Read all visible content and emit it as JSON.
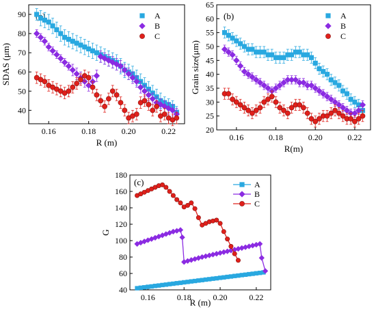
{
  "chart_data": [
    {
      "type": "scatter",
      "panel_label": "(a)",
      "xlabel": "R (m)",
      "ylabel": "SDAS (μm)",
      "xlim": [
        0.15,
        0.228
      ],
      "ylim": [
        33,
        95
      ],
      "xticks": [
        0.16,
        0.18,
        0.2,
        0.22
      ],
      "xtick_labels": [
        "0.16",
        "0.18",
        "0.20",
        "0.22"
      ],
      "yticks": [
        40,
        50,
        60,
        70,
        80,
        90
      ],
      "ytick_labels": [
        "40",
        "50",
        "60",
        "70",
        "80",
        "90"
      ],
      "legend_position": "top-right",
      "grid": false,
      "series": [
        {
          "name": "A",
          "marker": "square",
          "color": "#29a8e0",
          "x": [
            0.154,
            0.156,
            0.158,
            0.16,
            0.162,
            0.164,
            0.166,
            0.168,
            0.17,
            0.172,
            0.174,
            0.176,
            0.178,
            0.18,
            0.182,
            0.184,
            0.186,
            0.188,
            0.19,
            0.192,
            0.194,
            0.196,
            0.198,
            0.2,
            0.202,
            0.204,
            0.206,
            0.208,
            0.21,
            0.212,
            0.214,
            0.216,
            0.218,
            0.22,
            0.222,
            0.224
          ],
          "y": [
            90,
            88,
            87,
            86,
            84,
            82,
            80,
            78,
            77,
            76,
            75,
            74,
            73,
            72,
            71,
            70,
            69,
            68,
            67,
            66,
            65,
            63,
            61,
            60,
            59,
            57,
            55,
            53,
            51,
            49,
            47,
            45,
            44,
            43,
            42,
            39
          ],
          "err": [
            3,
            4,
            4,
            4,
            4,
            4,
            4,
            4,
            4,
            4,
            4,
            4,
            4,
            4,
            4,
            4,
            4,
            4,
            4,
            4,
            4,
            4,
            4,
            4,
            4,
            4,
            4,
            4,
            4,
            4,
            4,
            4,
            3,
            3,
            3,
            3
          ]
        },
        {
          "name": "B",
          "marker": "diamond",
          "color": "#8b2be2",
          "x": [
            0.154,
            0.156,
            0.158,
            0.16,
            0.162,
            0.164,
            0.166,
            0.168,
            0.17,
            0.172,
            0.174,
            0.176,
            0.178,
            0.18,
            0.182,
            0.184,
            0.186,
            0.188,
            0.19,
            0.192,
            0.194,
            0.196,
            0.198,
            0.2,
            0.202,
            0.204,
            0.206,
            0.208,
            0.21,
            0.212,
            0.214,
            0.216,
            0.218,
            0.22,
            0.222,
            0.224
          ],
          "y": [
            80,
            78,
            76,
            73,
            71,
            69,
            67,
            65,
            63,
            61,
            59,
            57,
            55,
            53,
            55,
            58,
            68,
            67,
            66,
            65,
            64,
            63,
            61,
            59,
            57,
            55,
            52,
            50,
            48,
            46,
            44,
            43,
            42,
            41,
            40,
            38
          ],
          "err": [
            2,
            2,
            2,
            2,
            2,
            2,
            2,
            2,
            2,
            3,
            3,
            3,
            3,
            3,
            3,
            3,
            3,
            3,
            3,
            3,
            3,
            3,
            3,
            3,
            3,
            3,
            3,
            3,
            3,
            3,
            3,
            3,
            3,
            3,
            3,
            3
          ]
        },
        {
          "name": "C",
          "marker": "circle",
          "color": "#e0201b",
          "x": [
            0.154,
            0.156,
            0.158,
            0.16,
            0.162,
            0.164,
            0.166,
            0.168,
            0.17,
            0.172,
            0.174,
            0.176,
            0.178,
            0.18,
            0.182,
            0.184,
            0.186,
            0.188,
            0.19,
            0.192,
            0.194,
            0.196,
            0.198,
            0.2,
            0.202,
            0.204,
            0.206,
            0.208,
            0.21,
            0.212,
            0.214,
            0.216,
            0.218,
            0.22,
            0.222,
            0.224
          ],
          "y": [
            57,
            56,
            55,
            53,
            52,
            51,
            50,
            49,
            50,
            52,
            54,
            56,
            58,
            57,
            52,
            48,
            45,
            42,
            46,
            50,
            48,
            44,
            40,
            36,
            37,
            38,
            44,
            45,
            43,
            40,
            42,
            37,
            38,
            36,
            35,
            36
          ],
          "err": [
            3,
            3,
            3,
            3,
            3,
            3,
            3,
            3,
            3,
            3,
            3,
            3,
            3,
            3,
            3,
            3,
            3,
            3,
            3,
            3,
            3,
            3,
            3,
            3,
            3,
            3,
            3,
            3,
            3,
            3,
            3,
            3,
            3,
            3,
            3,
            3
          ]
        }
      ]
    },
    {
      "type": "scatter",
      "panel_label": "(b)",
      "xlabel": "R(m)",
      "ylabel": "Grain size(μm)",
      "xlim": [
        0.15,
        0.228
      ],
      "ylim": [
        20,
        65
      ],
      "xticks": [
        0.16,
        0.18,
        0.2,
        0.22
      ],
      "xtick_labels": [
        "0.16",
        "0.18",
        "0.20",
        "0.22"
      ],
      "yticks": [
        20,
        25,
        30,
        35,
        40,
        45,
        50,
        55,
        60,
        65
      ],
      "ytick_labels": [
        "20",
        "25",
        "30",
        "35",
        "40",
        "45",
        "50",
        "55",
        "60",
        "65"
      ],
      "legend_position": "top-right",
      "grid": false,
      "series": [
        {
          "name": "A",
          "marker": "square",
          "color": "#29a8e0",
          "x": [
            0.154,
            0.156,
            0.158,
            0.16,
            0.162,
            0.164,
            0.166,
            0.168,
            0.17,
            0.172,
            0.174,
            0.176,
            0.178,
            0.18,
            0.182,
            0.184,
            0.186,
            0.188,
            0.19,
            0.192,
            0.194,
            0.196,
            0.198,
            0.2,
            0.202,
            0.204,
            0.206,
            0.208,
            0.21,
            0.212,
            0.214,
            0.216,
            0.218,
            0.22,
            0.222,
            0.224
          ],
          "y": [
            55,
            54,
            53,
            52,
            51,
            50,
            49,
            49,
            48,
            48,
            48,
            47,
            47,
            46,
            46,
            46,
            47,
            47,
            48,
            48,
            47,
            47,
            46,
            44,
            42,
            41,
            40,
            38,
            37,
            36,
            34,
            33,
            31,
            30,
            29,
            27
          ],
          "err": [
            2,
            2,
            2,
            2,
            2,
            2,
            2,
            2,
            2,
            2,
            2,
            2,
            2,
            2,
            2,
            2,
            2,
            2,
            2,
            2,
            2,
            2,
            2,
            2,
            2,
            2,
            2,
            2,
            2,
            2,
            2,
            2,
            2,
            2,
            2,
            2
          ]
        },
        {
          "name": "B",
          "marker": "diamond",
          "color": "#8b2be2",
          "x": [
            0.154,
            0.156,
            0.158,
            0.16,
            0.162,
            0.164,
            0.166,
            0.168,
            0.17,
            0.172,
            0.174,
            0.176,
            0.178,
            0.18,
            0.182,
            0.184,
            0.186,
            0.188,
            0.19,
            0.192,
            0.194,
            0.196,
            0.198,
            0.2,
            0.202,
            0.204,
            0.206,
            0.208,
            0.21,
            0.212,
            0.214,
            0.216,
            0.218,
            0.22,
            0.222,
            0.224
          ],
          "y": [
            49,
            48,
            47,
            45,
            43,
            41,
            40,
            39,
            38,
            37,
            36,
            35,
            34,
            35,
            36,
            37,
            38,
            38,
            38,
            37,
            37,
            36,
            36,
            35,
            34,
            33,
            32,
            31,
            30,
            29,
            28,
            27,
            26,
            26,
            27,
            29
          ],
          "err": [
            1.5,
            1.5,
            1.5,
            1.5,
            1.5,
            1.5,
            1.5,
            1.5,
            1.5,
            1.5,
            1.5,
            1.5,
            1.5,
            1.5,
            1.5,
            1.5,
            1.5,
            1.5,
            1.5,
            1.5,
            1.5,
            1.5,
            1.5,
            1.5,
            1.5,
            1.5,
            1.5,
            1.5,
            1.5,
            1.5,
            1.5,
            1.5,
            1.5,
            1.5,
            1.5,
            1.5
          ]
        },
        {
          "name": "C",
          "marker": "circle",
          "color": "#e0201b",
          "x": [
            0.154,
            0.156,
            0.158,
            0.16,
            0.162,
            0.164,
            0.166,
            0.168,
            0.17,
            0.172,
            0.174,
            0.176,
            0.178,
            0.18,
            0.182,
            0.184,
            0.186,
            0.188,
            0.19,
            0.192,
            0.194,
            0.196,
            0.198,
            0.2,
            0.202,
            0.204,
            0.206,
            0.208,
            0.21,
            0.212,
            0.214,
            0.216,
            0.218,
            0.22,
            0.222,
            0.224
          ],
          "y": [
            33,
            33,
            31,
            30,
            29,
            28,
            27,
            26,
            27,
            28,
            30,
            31,
            32,
            30,
            28,
            27,
            26,
            28,
            29,
            29,
            28,
            26,
            24,
            23,
            24,
            25,
            25,
            26,
            27,
            26,
            25,
            24,
            24,
            23,
            24,
            25
          ],
          "err": [
            2,
            2,
            2,
            2,
            2,
            2,
            2,
            2,
            2,
            2,
            2,
            2,
            2,
            2,
            2,
            2,
            2,
            2,
            2,
            2,
            2,
            2,
            2,
            2,
            2,
            2,
            2,
            2,
            2,
            2,
            2,
            2,
            2,
            2,
            2,
            2
          ]
        }
      ]
    },
    {
      "type": "line",
      "panel_label": "(c)",
      "xlabel": "R (m)",
      "ylabel": "G",
      "xlim": [
        0.15,
        0.228
      ],
      "ylim": [
        40,
        180
      ],
      "xticks": [
        0.16,
        0.18,
        0.2,
        0.22
      ],
      "xtick_labels": [
        "0.16",
        "0.18",
        "0.20",
        "0.22"
      ],
      "yticks": [
        40,
        60,
        80,
        100,
        120,
        140,
        160,
        180
      ],
      "ytick_labels": [
        "40",
        "60",
        "80",
        "100",
        "120",
        "140",
        "160",
        "180"
      ],
      "legend_position": "top-right",
      "grid": false,
      "series": [
        {
          "name": "A",
          "marker": "square",
          "color": "#29a8e0",
          "x": [
            0.154,
            0.156,
            0.158,
            0.16,
            0.162,
            0.164,
            0.166,
            0.168,
            0.17,
            0.172,
            0.174,
            0.176,
            0.178,
            0.18,
            0.182,
            0.184,
            0.186,
            0.188,
            0.19,
            0.192,
            0.194,
            0.196,
            0.198,
            0.2,
            0.202,
            0.204,
            0.206,
            0.208,
            0.21,
            0.212,
            0.214,
            0.216,
            0.218,
            0.22,
            0.222,
            0.224
          ],
          "y": [
            42,
            42.6,
            43.1,
            43.7,
            44.2,
            44.8,
            45.3,
            45.9,
            46.4,
            47,
            47.5,
            48.1,
            48.6,
            49.2,
            49.7,
            50.3,
            50.8,
            51.4,
            51.9,
            52.5,
            53,
            53.6,
            54.1,
            54.7,
            55.2,
            55.8,
            56.3,
            56.9,
            57.4,
            58,
            58.5,
            59.1,
            59.6,
            60.2,
            60.7,
            61.3
          ]
        },
        {
          "name": "B",
          "marker": "diamond",
          "color": "#8b2be2",
          "x": [
            0.154,
            0.156,
            0.158,
            0.16,
            0.162,
            0.164,
            0.166,
            0.168,
            0.17,
            0.172,
            0.174,
            0.176,
            0.178,
            0.179,
            0.18,
            0.182,
            0.184,
            0.186,
            0.188,
            0.19,
            0.192,
            0.194,
            0.196,
            0.198,
            0.2,
            0.202,
            0.204,
            0.206,
            0.208,
            0.21,
            0.212,
            0.214,
            0.216,
            0.218,
            0.22,
            0.222,
            0.223,
            0.225
          ],
          "y": [
            96,
            97.5,
            99,
            100.5,
            102,
            103.5,
            105,
            106.5,
            108,
            109.5,
            111,
            112,
            113,
            104,
            74,
            75.2,
            76.4,
            77.6,
            78.8,
            80,
            81,
            82,
            83,
            84,
            85,
            86,
            87,
            88,
            89,
            90,
            91,
            92,
            93,
            94,
            95,
            96,
            79,
            63
          ]
        },
        {
          "name": "C",
          "marker": "circle",
          "color": "#e0201b",
          "x": [
            0.154,
            0.156,
            0.158,
            0.16,
            0.162,
            0.164,
            0.166,
            0.168,
            0.17,
            0.172,
            0.174,
            0.176,
            0.178,
            0.18,
            0.182,
            0.184,
            0.186,
            0.188,
            0.19,
            0.192,
            0.194,
            0.196,
            0.198,
            0.2,
            0.202,
            0.204,
            0.206,
            0.208,
            0.21
          ],
          "y": [
            155,
            157,
            159,
            161,
            163,
            165,
            167,
            168,
            165,
            160,
            155,
            150,
            146,
            141,
            143,
            146,
            139,
            128,
            119,
            121,
            123,
            124,
            125,
            121,
            111,
            102,
            93,
            84,
            76
          ]
        }
      ]
    }
  ]
}
